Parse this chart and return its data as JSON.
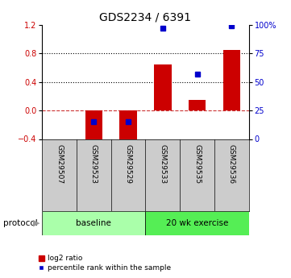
{
  "title": "GDS2234 / 6391",
  "samples": [
    "GSM29507",
    "GSM29523",
    "GSM29529",
    "GSM29533",
    "GSM29535",
    "GSM29536"
  ],
  "log2_ratio": [
    0.0,
    -0.55,
    -0.5,
    0.65,
    0.15,
    0.85
  ],
  "percentile_rank": [
    null,
    15.0,
    15.0,
    97.0,
    57.0,
    99.0
  ],
  "groups": [
    {
      "label": "baseline",
      "start": 0,
      "end": 3,
      "color": "#aaffaa"
    },
    {
      "label": "20 wk exercise",
      "start": 3,
      "end": 6,
      "color": "#55ee55"
    }
  ],
  "bar_color": "#cc0000",
  "dot_color": "#0000cc",
  "ylim_left": [
    -0.4,
    1.2
  ],
  "ylim_right": [
    0,
    100
  ],
  "yticks_left": [
    -0.4,
    0.0,
    0.4,
    0.8,
    1.2
  ],
  "yticks_right": [
    0,
    25,
    50,
    75,
    100
  ],
  "dotted_lines": [
    0.4,
    0.8
  ],
  "dashed_zero": 0.0,
  "bar_width": 0.5,
  "background_color": "#ffffff",
  "tick_label_color_left": "#cc0000",
  "tick_label_color_right": "#0000cc",
  "label_log2": "log2 ratio",
  "label_pct": "percentile rank within the sample",
  "protocol_label": "protocol",
  "group_label_color": "#000000",
  "tick_area_color": "#cccccc"
}
